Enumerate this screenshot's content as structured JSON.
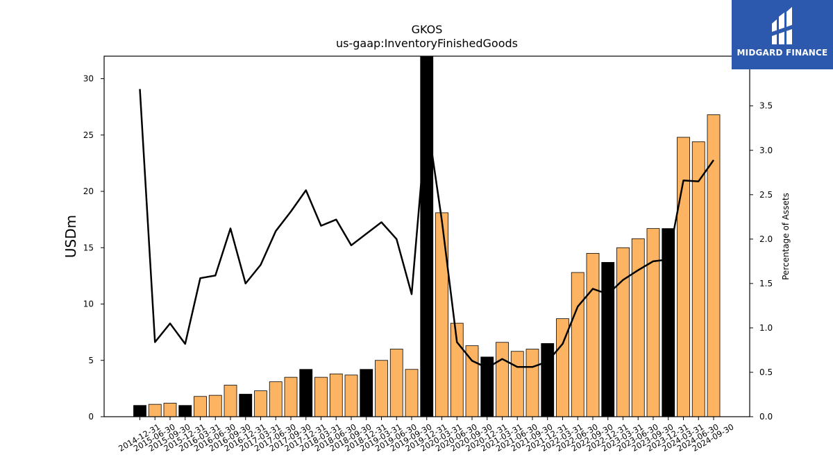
{
  "chart_data": {
    "type": "bar",
    "title": "GKOS",
    "subtitle": "us-gaap:InventoryFinishedGoods",
    "ylabel": "USDm",
    "ylabel_right": "Percentage of Assets",
    "ylim": [
      0,
      32
    ],
    "ylim_right": [
      0,
      4.06
    ],
    "yticks": [
      "0",
      "5",
      "10",
      "15",
      "20",
      "25",
      "30"
    ],
    "yticks_right": [
      "0.0",
      "0.5",
      "1.0",
      "1.5",
      "2.0",
      "2.5",
      "3.0",
      "3.5"
    ],
    "categories": [
      "2014-12-31",
      "2015-06-30",
      "2015-09-30",
      "2015-12-31",
      "2016-03-31",
      "2016-06-30",
      "2016-09-30",
      "2016-12-31",
      "2017-03-31",
      "2017-06-30",
      "2017-09-30",
      "2017-12-31",
      "2018-03-31",
      "2018-06-30",
      "2018-09-30",
      "2018-12-31",
      "2019-03-31",
      "2019-06-30",
      "2019-09-30",
      "2019-12-31",
      "2020-03-31",
      "2020-06-30",
      "2020-09-30",
      "2020-12-31",
      "2021-03-31",
      "2021-06-30",
      "2021-09-30",
      "2021-12-31",
      "2022-03-31",
      "2022-06-30",
      "2022-09-30",
      "2022-12-31",
      "2023-03-31",
      "2023-06-30",
      "2023-09-30",
      "2023-12-31",
      "2024-03-31",
      "2024-06-30",
      "2024-09-30"
    ],
    "series": [
      {
        "kind": "bar",
        "values": [
          1.0,
          1.1,
          1.2,
          1.0,
          1.8,
          1.9,
          2.8,
          2.0,
          2.3,
          3.1,
          3.5,
          4.2,
          3.5,
          3.8,
          3.7,
          4.2,
          5.0,
          6.0,
          4.2,
          32.0,
          18.1,
          8.3,
          6.3,
          5.3,
          6.6,
          5.8,
          6.0,
          6.5,
          8.7,
          12.8,
          14.5,
          13.7,
          15.0,
          15.8,
          16.7,
          16.7,
          24.8,
          24.4,
          26.8
        ],
        "highlight": [
          true,
          false,
          false,
          true,
          false,
          false,
          false,
          true,
          false,
          false,
          false,
          true,
          false,
          false,
          false,
          true,
          false,
          false,
          false,
          true,
          false,
          false,
          false,
          true,
          false,
          false,
          false,
          true,
          false,
          false,
          false,
          true,
          false,
          false,
          false,
          true,
          false,
          false,
          false
        ]
      },
      {
        "kind": "line",
        "axis": "right",
        "values": [
          3.69,
          0.84,
          1.05,
          0.82,
          1.56,
          1.59,
          2.12,
          1.5,
          1.71,
          2.09,
          2.31,
          2.55,
          2.15,
          2.22,
          1.93,
          2.06,
          2.19,
          2.0,
          1.38,
          3.38,
          2.21,
          0.84,
          0.63,
          0.55,
          0.65,
          0.56,
          0.56,
          0.62,
          0.82,
          1.24,
          1.44,
          1.38,
          1.54,
          1.65,
          1.75,
          1.77,
          2.66,
          2.65,
          2.89
        ]
      }
    ],
    "colors": {
      "bar": "#fdb462",
      "bar_highlight": "#000000",
      "line": "#000000"
    },
    "grid": false,
    "legend": "none"
  },
  "brand": {
    "name": "MIDGARD FINANCE",
    "bg": "#2c59ad",
    "fg": "#ffffff",
    "icon": "midgard-logo-icon"
  }
}
